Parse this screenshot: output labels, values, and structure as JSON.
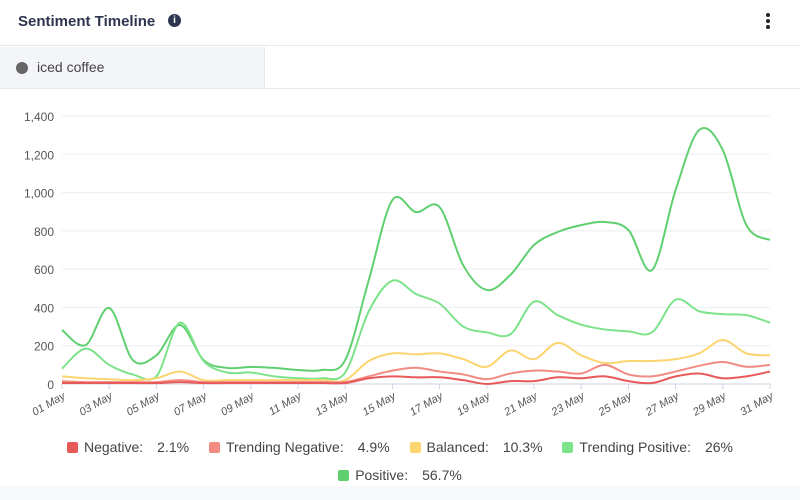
{
  "header": {
    "title": "Sentiment Timeline",
    "info_icon": "info-icon",
    "menu_icon": "kebab-menu-icon"
  },
  "tabs": [
    {
      "label": "iced coffee",
      "color": "#666666"
    }
  ],
  "chart_data": {
    "type": "line",
    "title": "",
    "xlabel": "",
    "ylabel": "",
    "ylim": [
      0,
      1400
    ],
    "yticks": [
      "0",
      "200",
      "400",
      "600",
      "800",
      "1,000",
      "1,200",
      "1,400"
    ],
    "ytick_values": [
      0,
      200,
      400,
      600,
      800,
      1000,
      1200,
      1400
    ],
    "x": [
      "01 May",
      "02 May",
      "03 May",
      "04 May",
      "05 May",
      "06 May",
      "07 May",
      "08 May",
      "09 May",
      "10 May",
      "11 May",
      "12 May",
      "13 May",
      "14 May",
      "15 May",
      "16 May",
      "17 May",
      "18 May",
      "19 May",
      "20 May",
      "21 May",
      "22 May",
      "23 May",
      "24 May",
      "25 May",
      "26 May",
      "27 May",
      "28 May",
      "29 May",
      "30 May",
      "31 May"
    ],
    "xticks": [
      "01 May",
      "03 May",
      "05 May",
      "07 May",
      "09 May",
      "11 May",
      "13 May",
      "15 May",
      "17 May",
      "19 May",
      "21 May",
      "23 May",
      "25 May",
      "27 May",
      "29 May",
      "31 May"
    ],
    "grid": true,
    "legend_position": "bottom",
    "series": [
      {
        "name": "Negative",
        "percent": "2.1%",
        "color": "#e85a5a",
        "values": [
          5,
          5,
          5,
          5,
          5,
          10,
          5,
          5,
          5,
          5,
          5,
          5,
          5,
          30,
          40,
          35,
          35,
          20,
          0,
          15,
          15,
          35,
          30,
          40,
          15,
          5,
          40,
          55,
          30,
          40,
          65
        ]
      },
      {
        "name": "Trending Negative",
        "percent": "4.9%",
        "color": "#f28b82",
        "values": [
          15,
          10,
          10,
          10,
          10,
          20,
          10,
          10,
          10,
          10,
          10,
          10,
          10,
          40,
          70,
          85,
          65,
          50,
          25,
          55,
          70,
          65,
          55,
          100,
          50,
          40,
          65,
          95,
          115,
          90,
          100
        ]
      },
      {
        "name": "Balanced",
        "percent": "10.3%",
        "color": "#fcd470",
        "values": [
          40,
          30,
          25,
          20,
          30,
          65,
          20,
          20,
          20,
          20,
          20,
          20,
          20,
          120,
          160,
          155,
          160,
          130,
          90,
          175,
          130,
          215,
          150,
          110,
          120,
          120,
          130,
          160,
          230,
          160,
          150
        ]
      },
      {
        "name": "Trending Positive",
        "percent": "26%",
        "color": "#7de38a",
        "values": [
          80,
          185,
          100,
          50,
          40,
          320,
          120,
          60,
          60,
          40,
          30,
          30,
          60,
          380,
          540,
          470,
          420,
          300,
          270,
          260,
          430,
          360,
          310,
          285,
          275,
          270,
          440,
          380,
          365,
          360,
          320
        ]
      },
      {
        "name": "Positive",
        "percent": "56.7%",
        "color": "#5fcf70",
        "values": [
          282,
          203,
          397,
          125,
          150,
          308,
          125,
          84,
          89,
          84,
          73,
          73,
          125,
          543,
          961,
          898,
          924,
          620,
          491,
          570,
          726,
          794,
          830,
          846,
          804,
          595,
          1013,
          1327,
          1222,
          830,
          752
        ]
      }
    ]
  }
}
